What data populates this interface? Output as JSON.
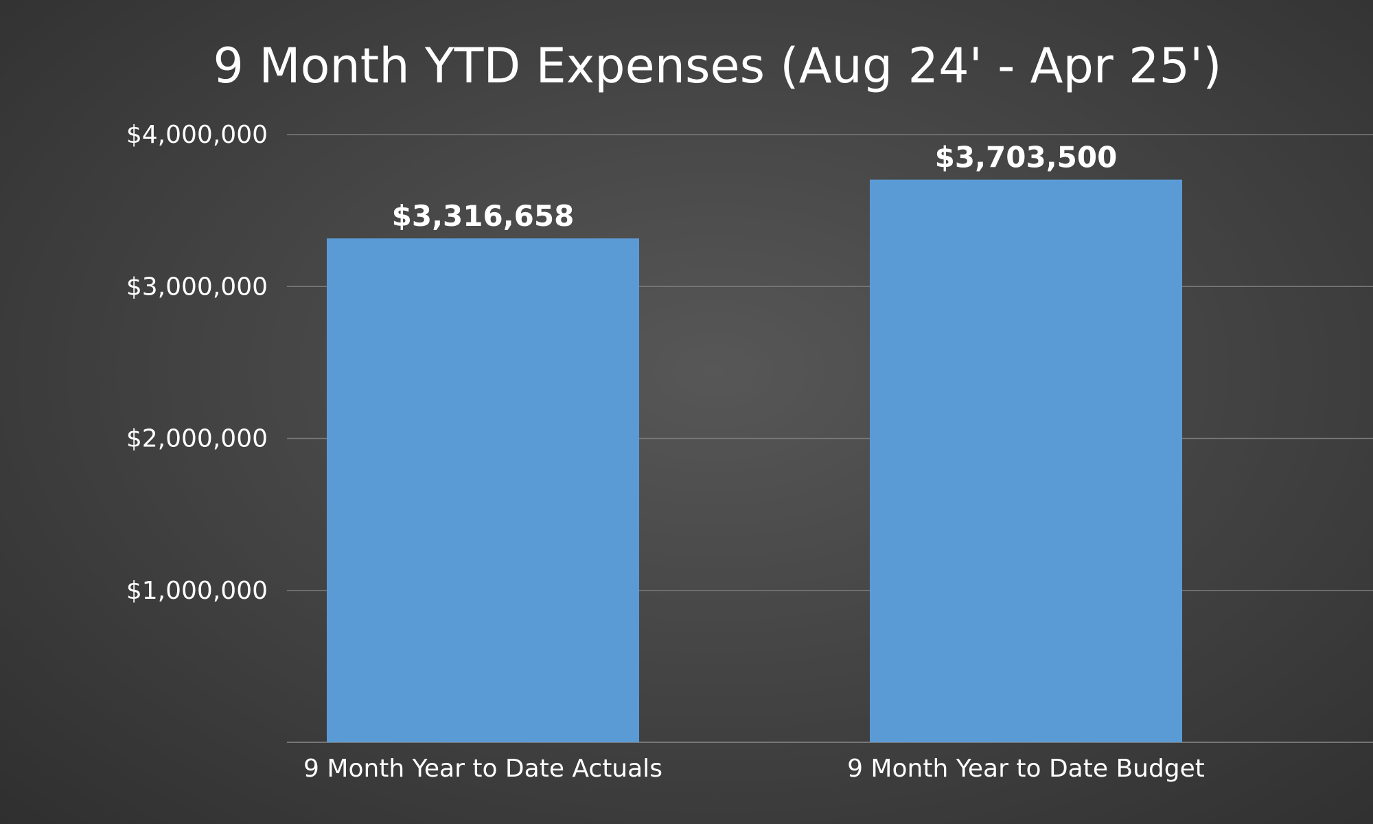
{
  "chart_data": {
    "type": "bar",
    "title": "9 Month YTD Expenses (Aug 24' - Apr 25')",
    "categories": [
      "9 Month Year to Date Actuals",
      "9 Month Year to Date Budget"
    ],
    "values": [
      3316658,
      3703500
    ],
    "data_labels": [
      "$3,316,658",
      "$3,703,500"
    ],
    "ylim": [
      0,
      4000000
    ],
    "yticks": [
      1000000,
      2000000,
      3000000,
      4000000
    ],
    "ytick_labels": [
      "$1,000,000",
      "$2,000,000",
      "$3,000,000",
      "$4,000,000"
    ],
    "xlabel": "",
    "ylabel": "",
    "grid": true,
    "legend": "none",
    "colors": {
      "bar": "#5b9bd5",
      "background": "#474747",
      "text": "#ffffff",
      "gridline": "#7a7a7a"
    }
  }
}
